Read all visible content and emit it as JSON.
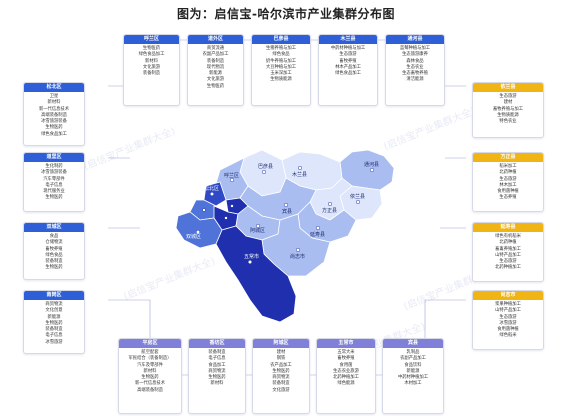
{
  "title": "图为：启信宝-哈尔滨市产业集群分布图",
  "watermark": "(启信宝产业集群大全)",
  "top_cards": [
    {
      "name": "呼兰区",
      "items": [
        "生物医药",
        "绿色食品加工",
        "新材料",
        "文化旅游",
        "装备制造"
      ]
    },
    {
      "name": "道外区",
      "items": [
        "商贸流通",
        "农副产品加工",
        "装备制造",
        "现代物流",
        "新能源",
        "文化旅游",
        "生物医药"
      ]
    },
    {
      "name": "巴彦县",
      "items": [
        "生猪养殖与加工",
        "绿色食品",
        "奶牛养殖与加工",
        "大豆种植与加工",
        "玉米深加工",
        "生物质能源"
      ]
    },
    {
      "name": "木兰县",
      "items": [
        "中药材种植与加工",
        "生态旅游",
        "畜牧养殖",
        "林木产品加工",
        "绿色食品加工"
      ]
    },
    {
      "name": "通河县",
      "items": [
        "蓝莓种植与加工",
        "生态旅游康养",
        "森林食品",
        "生态农业",
        "生态畜牧养殖",
        "清洁能源"
      ]
    }
  ],
  "left_cards": [
    {
      "name": "松北区",
      "items": [
        "卫星",
        "新材料",
        "新一代信息技术",
        "高端装备制造",
        "冰雪旅游装备",
        "生物医药",
        "绿色食品加工"
      ]
    },
    {
      "name": "道里区",
      "items": [
        "生化制药",
        "冰雪旅游装备",
        "汽车零部件",
        "电子信息",
        "现代服务业",
        "生物医药"
      ]
    },
    {
      "name": "双城区",
      "items": [
        "食品",
        "仓储物流",
        "畜牧养殖",
        "绿色食品",
        "装备制造",
        "生物医药"
      ]
    },
    {
      "name": "南岗区",
      "items": [
        "商贸物流",
        "文化创意",
        "新能源",
        "生物医药",
        "装备制造",
        "电子信息",
        "冰雪旅游"
      ]
    }
  ],
  "right_cards": [
    {
      "name": "依兰县",
      "items": [
        "生态旅游",
        "建材",
        "畜牧养殖与加工",
        "生物质能源",
        "特色农业"
      ]
    },
    {
      "name": "方正县",
      "items": [
        "稻米加工",
        "北药种植",
        "生态旅游",
        "林木加工",
        "食用菌种植",
        "生态养殖"
      ]
    },
    {
      "name": "延寿县",
      "items": [
        "绿色有机稻米",
        "北药种植",
        "畜禽养殖加工",
        "山特产品加工",
        "生态旅游",
        "北药种植加工"
      ]
    },
    {
      "name": "尚志市",
      "items": [
        "浆果种植加工",
        "山特产品加工",
        "生态旅游",
        "冰雪旅游",
        "食用菌种植",
        "绿色稻米"
      ]
    }
  ],
  "bottom_cards": [
    {
      "name": "平房区",
      "items": [
        "航空配套",
        "军民结合（装备制造）",
        "汽车及零部件",
        "新材料",
        "生物医药",
        "新一代信息技术",
        "高端装备制造"
      ]
    },
    {
      "name": "香坊区",
      "items": [
        "装备制造",
        "电子信息",
        "食品加工",
        "商贸物流",
        "生物医药",
        "新材料"
      ]
    },
    {
      "name": "阿城区",
      "items": [
        "建材",
        "钢铁",
        "农产品加工",
        "生物医药",
        "商贸物流",
        "装备制造",
        "文化旅游"
      ]
    },
    {
      "name": "五常市",
      "items": [
        "五常大米",
        "畜牧养殖",
        "食用菌",
        "生态农业旅游",
        "北药种植加工",
        "绿色能源"
      ]
    },
    {
      "name": "宾县",
      "items": [
        "乳制品",
        "农副产品加工",
        "食品饮料",
        "新能源",
        "中药材种植加工",
        "木材加工"
      ]
    }
  ],
  "map_labels": [
    {
      "name": "呼兰区"
    },
    {
      "name": "巴彦县"
    },
    {
      "name": "木兰县"
    },
    {
      "name": "通河县"
    },
    {
      "name": "依兰县"
    },
    {
      "name": "方正县"
    },
    {
      "name": "延寿县"
    },
    {
      "name": "尚志市"
    },
    {
      "name": "宾县"
    },
    {
      "name": "阿城区"
    },
    {
      "name": "五常市"
    },
    {
      "name": "双城区"
    },
    {
      "name": "松北区"
    }
  ],
  "colors": {
    "dark": "#1f2fae",
    "mid": "#4f73d8",
    "light": "#a9bdf0",
    "pale": "#dde6fb",
    "top_head": "#2e5fd6",
    "right_head": "#f0b515",
    "bottom_head": "#8080d8"
  }
}
